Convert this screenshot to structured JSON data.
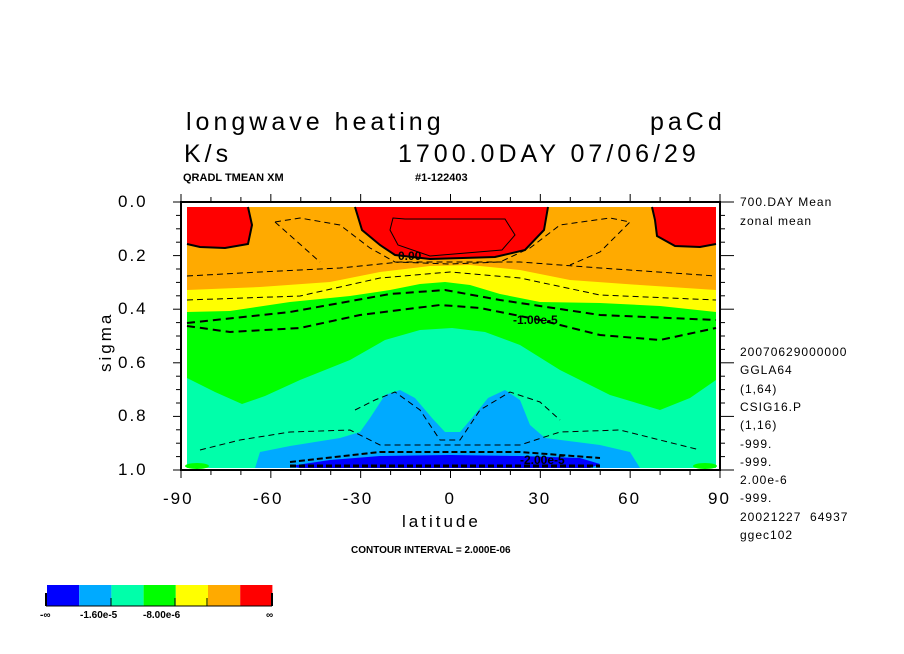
{
  "header": {
    "title": "longwave heating",
    "run_id": "paCd",
    "units": "K/s",
    "time": "1700.0DAY 07/06/29",
    "variable_info": "QRADL TMEAN XM",
    "experiment": "#1-122403"
  },
  "side_info": {
    "lines_top": [
      "700.DAY Mean",
      "zonal mean"
    ],
    "lines_bottom": [
      "20070629000000",
      "GGLA64",
      "(1,64)",
      "CSIG16.P",
      "(1,16)",
      "-999.",
      "-999.",
      "2.00e-6",
      "-999.",
      "20021227  64937",
      "ggec102"
    ]
  },
  "footer": {
    "contour_interval": "CONTOUR INTERVAL = 2.000E-06"
  },
  "chart_data": {
    "type": "contour",
    "title": "longwave heating",
    "xlabel": "latitude",
    "ylabel": "sigma",
    "xlim": [
      -90,
      90
    ],
    "ylim": [
      1.0,
      0.0
    ],
    "x_ticks": [
      "-90",
      "-60",
      "-30",
      "0",
      "30",
      "60",
      "90"
    ],
    "x_tick_values": [
      -90,
      -60,
      -30,
      0,
      30,
      60,
      90
    ],
    "y_ticks": [
      "0.0",
      "0.2",
      "0.4",
      "0.6",
      "0.8",
      "1.0"
    ],
    "y_tick_values": [
      0.0,
      0.2,
      0.4,
      0.6,
      0.8,
      1.0
    ],
    "contour_interval": 2e-06,
    "contour_labels": [
      "0.00",
      "-1.00e-5",
      "-2.00e-5"
    ],
    "color_levels": {
      "colors": [
        "#0000ff",
        "#00aaff",
        "#00ffaa",
        "#00ff00",
        "#ffff00",
        "#ffaa00",
        "#ff0000"
      ],
      "tick_labels": [
        "-∞",
        "-1.60e-5",
        "-8.00e-6",
        "∞"
      ]
    }
  }
}
